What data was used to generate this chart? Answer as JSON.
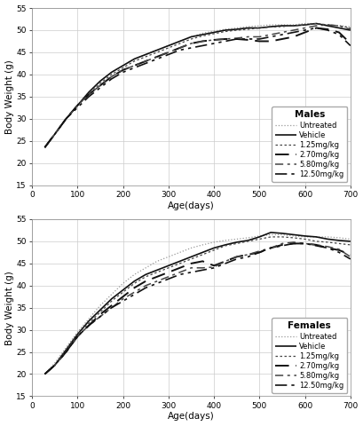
{
  "title_males": "Males",
  "title_females": "Females",
  "xlabel": "Age(days)",
  "ylabel": "Body Weight (g)",
  "ylim": [
    15,
    55
  ],
  "xlim": [
    0,
    700
  ],
  "yticks": [
    15,
    20,
    25,
    30,
    35,
    40,
    45,
    50,
    55
  ],
  "xticks": [
    0,
    100,
    200,
    300,
    400,
    500,
    600,
    700
  ],
  "legend_labels": [
    "Untreated",
    "Vehicle",
    "1.25mg/kg",
    "2.70mg/kg",
    "5.80mg/kg",
    "12.50mg/kg"
  ],
  "line_styles": [
    {
      "color": "#999999",
      "linewidth": 0.9,
      "linestyle": "dotted"
    },
    {
      "color": "#111111",
      "linewidth": 1.2,
      "linestyle": "solid"
    },
    {
      "color": "#444444",
      "linewidth": 0.9,
      "linestyle": "densely dotted"
    },
    {
      "color": "#111111",
      "linewidth": 1.4,
      "linestyle": "loosely dashed"
    },
    {
      "color": "#444444",
      "linewidth": 1.1,
      "linestyle": "dashdotted"
    },
    {
      "color": "#111111",
      "linewidth": 1.2,
      "linestyle": "loosely dashdotdotted"
    }
  ],
  "males": {
    "age": [
      28,
      50,
      75,
      100,
      125,
      150,
      175,
      200,
      225,
      250,
      275,
      300,
      325,
      350,
      375,
      400,
      425,
      450,
      475,
      500,
      525,
      550,
      575,
      600,
      625,
      650,
      675,
      700
    ],
    "untreated": [
      23.5,
      26.5,
      30.0,
      33.0,
      36.0,
      38.5,
      40.5,
      42.0,
      43.5,
      44.5,
      45.5,
      46.5,
      47.5,
      48.5,
      49.3,
      49.8,
      50.2,
      50.5,
      50.8,
      51.0,
      51.2,
      51.2,
      51.2,
      51.5,
      51.5,
      51.2,
      51.0,
      50.8
    ],
    "vehicle": [
      23.5,
      26.5,
      30.0,
      33.0,
      36.0,
      38.5,
      40.5,
      42.0,
      43.5,
      44.5,
      45.5,
      46.5,
      47.5,
      48.5,
      49.0,
      49.5,
      50.0,
      50.2,
      50.5,
      50.5,
      50.8,
      51.0,
      51.0,
      51.2,
      51.5,
      51.0,
      50.5,
      50.0
    ],
    "d125": [
      23.5,
      26.5,
      30.0,
      33.0,
      35.5,
      38.0,
      40.0,
      41.5,
      43.0,
      44.0,
      45.0,
      46.0,
      47.0,
      48.0,
      48.7,
      49.2,
      49.7,
      50.0,
      50.2,
      50.5,
      50.7,
      50.8,
      51.0,
      51.2,
      51.5,
      51.2,
      51.0,
      50.5
    ],
    "d270": [
      23.5,
      26.5,
      30.0,
      33.0,
      35.5,
      37.5,
      39.5,
      41.0,
      42.0,
      43.0,
      44.0,
      45.0,
      46.0,
      47.0,
      47.5,
      47.8,
      48.0,
      48.0,
      47.8,
      47.5,
      47.5,
      48.0,
      48.5,
      49.5,
      50.5,
      50.2,
      49.5,
      47.0
    ],
    "d580": [
      23.5,
      26.5,
      30.0,
      33.0,
      35.5,
      37.5,
      39.5,
      41.0,
      42.0,
      43.0,
      44.0,
      45.0,
      46.0,
      47.0,
      47.5,
      47.8,
      48.0,
      48.2,
      48.5,
      48.5,
      49.0,
      49.5,
      50.0,
      50.5,
      51.0,
      51.2,
      51.0,
      50.2
    ],
    "d1250": [
      23.5,
      26.5,
      30.0,
      32.5,
      35.0,
      37.0,
      39.0,
      40.5,
      41.5,
      42.5,
      43.5,
      44.5,
      45.5,
      46.0,
      46.5,
      47.0,
      47.5,
      48.0,
      48.0,
      48.0,
      48.5,
      49.0,
      49.5,
      50.0,
      50.5,
      50.0,
      49.0,
      46.5
    ]
  },
  "females": {
    "age": [
      28,
      50,
      75,
      100,
      125,
      150,
      175,
      200,
      225,
      250,
      275,
      300,
      325,
      350,
      375,
      400,
      425,
      450,
      475,
      500,
      525,
      550,
      575,
      600,
      625,
      650,
      675,
      700
    ],
    "untreated": [
      20.0,
      22.5,
      26.0,
      29.5,
      32.5,
      35.5,
      38.0,
      40.5,
      42.5,
      44.0,
      45.5,
      46.5,
      47.5,
      48.5,
      49.2,
      49.8,
      50.2,
      50.5,
      50.8,
      51.2,
      51.5,
      51.5,
      51.2,
      51.0,
      51.0,
      51.0,
      50.8,
      50.5
    ],
    "vehicle": [
      20.0,
      22.0,
      25.5,
      29.0,
      32.0,
      34.5,
      37.0,
      39.0,
      41.0,
      42.5,
      43.5,
      44.5,
      45.5,
      46.5,
      47.5,
      48.5,
      49.2,
      49.8,
      50.2,
      51.0,
      52.0,
      51.8,
      51.5,
      51.2,
      51.0,
      50.5,
      50.2,
      50.0
    ],
    "d125": [
      20.0,
      22.0,
      25.5,
      29.0,
      31.5,
      34.0,
      36.5,
      38.5,
      40.5,
      42.0,
      43.0,
      44.0,
      45.0,
      46.0,
      47.0,
      48.0,
      49.0,
      49.5,
      50.0,
      50.5,
      51.0,
      51.0,
      50.8,
      50.5,
      50.0,
      49.8,
      49.5,
      49.2
    ],
    "d270": [
      20.0,
      22.0,
      25.0,
      28.5,
      31.0,
      33.5,
      35.5,
      37.5,
      39.5,
      41.0,
      42.0,
      43.0,
      44.0,
      45.0,
      45.5,
      44.5,
      45.5,
      46.5,
      47.0,
      47.5,
      48.5,
      49.2,
      49.5,
      49.5,
      49.2,
      48.5,
      48.0,
      47.0
    ],
    "d580": [
      20.0,
      22.0,
      25.0,
      28.5,
      31.0,
      33.0,
      35.0,
      37.0,
      38.5,
      40.0,
      41.0,
      42.0,
      43.0,
      44.0,
      44.0,
      44.2,
      45.5,
      46.5,
      47.0,
      47.8,
      48.5,
      49.5,
      49.8,
      49.5,
      49.2,
      48.8,
      48.2,
      46.5
    ],
    "d1250": [
      20.0,
      22.0,
      25.0,
      28.5,
      31.0,
      33.0,
      35.0,
      36.5,
      38.0,
      39.5,
      40.5,
      41.5,
      42.5,
      43.0,
      43.5,
      44.0,
      45.0,
      46.0,
      46.5,
      47.5,
      48.5,
      49.0,
      49.5,
      49.5,
      49.0,
      48.5,
      47.5,
      46.0
    ]
  },
  "bg_color": "#ffffff",
  "grid_color": "#cccccc",
  "spine_color": "#888888"
}
